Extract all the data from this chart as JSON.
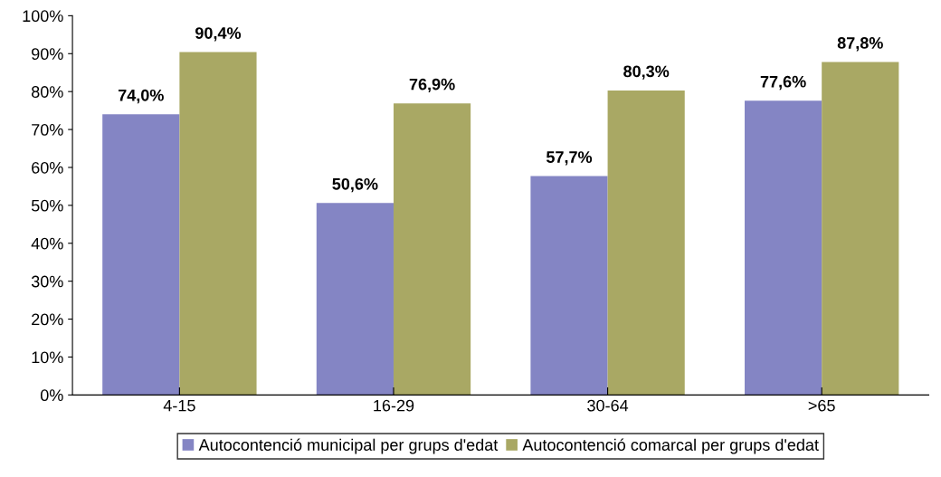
{
  "chart_data": {
    "type": "bar",
    "categories": [
      "4-15",
      "16-29",
      "30-64",
      ">65"
    ],
    "series": [
      {
        "name": "Autocontenció municipal per grups d'edat",
        "color": "#8485c4",
        "values": [
          74.0,
          50.6,
          57.7,
          77.6
        ],
        "value_labels": [
          "74,0%",
          "50,6%",
          "57,7%",
          "77,6%"
        ]
      },
      {
        "name": "Autocontenció comarcal per grups d'edat",
        "color": "#a9a864",
        "values": [
          90.4,
          76.9,
          80.3,
          87.8
        ],
        "value_labels": [
          "90,4%",
          "76,9%",
          "80,3%",
          "87,8%"
        ]
      }
    ],
    "ylim": [
      0,
      100
    ],
    "yticks": [
      {
        "value": 0,
        "label": "0%"
      },
      {
        "value": 10,
        "label": "10%"
      },
      {
        "value": 20,
        "label": "20%"
      },
      {
        "value": 30,
        "label": "30%"
      },
      {
        "value": 40,
        "label": "40%"
      },
      {
        "value": 50,
        "label": "50%"
      },
      {
        "value": 60,
        "label": "60%"
      },
      {
        "value": 70,
        "label": "70%"
      },
      {
        "value": 80,
        "label": "80%"
      },
      {
        "value": 90,
        "label": "90%"
      },
      {
        "value": 100,
        "label": "100%"
      }
    ],
    "grid": false,
    "legend": "bottom"
  }
}
